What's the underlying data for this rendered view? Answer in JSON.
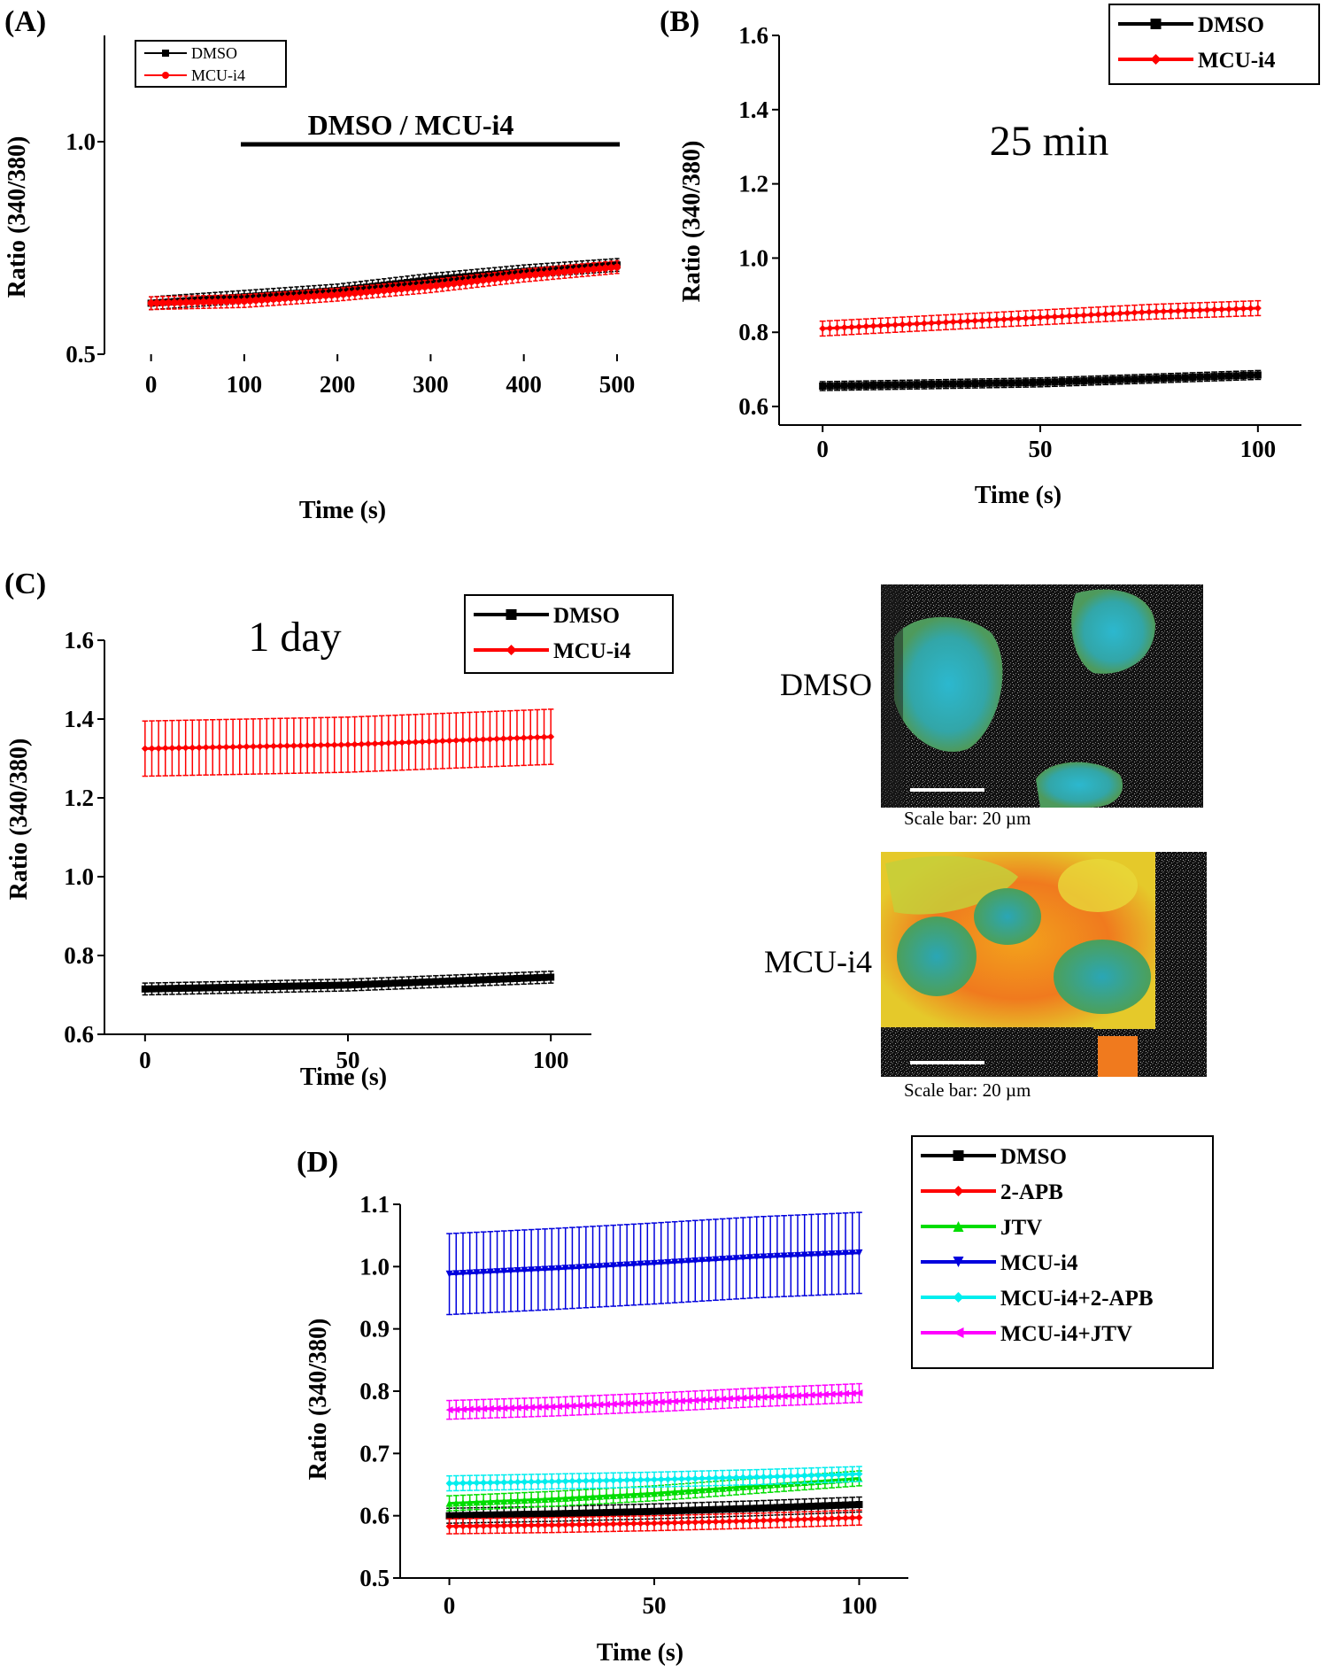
{
  "figure": {
    "micrographs": [
      {
        "label": "DMSO",
        "scale_text": "Scale bar: 20 µm"
      },
      {
        "label": "MCU-i4",
        "scale_text": "Scale bar: 20 µm"
      }
    ]
  },
  "chart_data": [
    {
      "panel": "(A)",
      "type": "line",
      "title": "",
      "annotation": "DMSO / MCU-i4",
      "xlabel": "Time (s)",
      "ylabel": "Ratio (340/380)",
      "xlim": [
        -50,
        520
      ],
      "ylim": [
        0.5,
        1.25
      ],
      "xticks": [
        0,
        100,
        200,
        300,
        400,
        500
      ],
      "yticks": [
        0.5,
        1.0
      ],
      "legend": "top-left",
      "series": [
        {
          "name": "DMSO",
          "color": "#000000",
          "marker": "square",
          "x": [
            0,
            100,
            200,
            300,
            400,
            500
          ],
          "y": [
            0.62,
            0.635,
            0.65,
            0.675,
            0.695,
            0.71
          ],
          "err": 0.015
        },
        {
          "name": "MCU-i4",
          "color": "#ff0000",
          "marker": "circle",
          "x": [
            0,
            100,
            200,
            300,
            400,
            500
          ],
          "y": [
            0.62,
            0.625,
            0.64,
            0.66,
            0.685,
            0.705
          ],
          "err": 0.015
        }
      ]
    },
    {
      "panel": "(B)",
      "type": "line",
      "title": "25 min",
      "xlabel": "Time (s)",
      "ylabel": "Ratio (340/380)",
      "xlim": [
        -10,
        110
      ],
      "ylim": [
        0.55,
        1.6
      ],
      "xticks": [
        0,
        50,
        100
      ],
      "yticks": [
        0.6,
        0.8,
        1.0,
        1.2,
        1.4,
        1.6
      ],
      "legend": "top-right",
      "series": [
        {
          "name": "DMSO",
          "color": "#000000",
          "marker": "square",
          "x": [
            0,
            25,
            50,
            75,
            100
          ],
          "y": [
            0.655,
            0.66,
            0.665,
            0.675,
            0.685
          ],
          "err": 0.012
        },
        {
          "name": "MCU-i4",
          "color": "#ff0000",
          "marker": "diamond",
          "x": [
            0,
            25,
            50,
            75,
            100
          ],
          "y": [
            0.81,
            0.825,
            0.84,
            0.855,
            0.865
          ],
          "err": 0.02
        }
      ]
    },
    {
      "panel": "(C)",
      "type": "line",
      "title": "1 day",
      "xlabel": "Time (s)",
      "ylabel": "Ratio (340/380)",
      "xlim": [
        -10,
        110
      ],
      "ylim": [
        0.6,
        1.6
      ],
      "xticks": [
        0,
        50,
        100
      ],
      "yticks": [
        0.6,
        0.8,
        1.0,
        1.2,
        1.4,
        1.6
      ],
      "legend": "top-right",
      "series": [
        {
          "name": "DMSO",
          "color": "#000000",
          "marker": "square",
          "x": [
            0,
            25,
            50,
            75,
            100
          ],
          "y": [
            0.715,
            0.72,
            0.725,
            0.735,
            0.745
          ],
          "err": 0.015
        },
        {
          "name": "MCU-i4",
          "color": "#ff0000",
          "marker": "diamond",
          "x": [
            0,
            25,
            50,
            75,
            100
          ],
          "y": [
            1.325,
            1.33,
            1.335,
            1.345,
            1.355
          ],
          "err": 0.07
        }
      ]
    },
    {
      "panel": "(D)",
      "type": "line",
      "title": "",
      "xlabel": "Time (s)",
      "ylabel": "Ratio (340/380)",
      "xlim": [
        -12,
        112
      ],
      "ylim": [
        0.5,
        1.1
      ],
      "xticks": [
        0,
        50,
        100
      ],
      "yticks": [
        0.5,
        0.6,
        0.7,
        0.8,
        0.9,
        1.0,
        1.1
      ],
      "legend": "top-right",
      "series": [
        {
          "name": "DMSO",
          "color": "#000000",
          "marker": "square",
          "x": [
            0,
            25,
            50,
            75,
            100
          ],
          "y": [
            0.6,
            0.603,
            0.607,
            0.612,
            0.618
          ],
          "err": 0.012
        },
        {
          "name": "2-APB",
          "color": "#ff0000",
          "marker": "diamond",
          "x": [
            0,
            25,
            50,
            75,
            100
          ],
          "y": [
            0.583,
            0.585,
            0.588,
            0.592,
            0.597
          ],
          "err": 0.012
        },
        {
          "name": "JTV",
          "color": "#00dd00",
          "marker": "triangle-up",
          "x": [
            0,
            25,
            50,
            75,
            100
          ],
          "y": [
            0.62,
            0.627,
            0.636,
            0.648,
            0.66
          ],
          "err": 0.012
        },
        {
          "name": "MCU-i4",
          "color": "#0000dd",
          "marker": "triangle-down",
          "x": [
            0,
            25,
            50,
            75,
            100
          ],
          "y": [
            0.988,
            0.996,
            1.005,
            1.015,
            1.022
          ],
          "err": 0.065
        },
        {
          "name": "MCU-i4+2-APB",
          "color": "#00eeee",
          "marker": "diamond",
          "x": [
            0,
            25,
            50,
            75,
            100
          ],
          "y": [
            0.652,
            0.655,
            0.658,
            0.662,
            0.667
          ],
          "err": 0.012
        },
        {
          "name": "MCU-i4+JTV",
          "color": "#ff00ff",
          "marker": "triangle-left",
          "x": [
            0,
            25,
            50,
            75,
            100
          ],
          "y": [
            0.77,
            0.775,
            0.782,
            0.79,
            0.797
          ],
          "err": 0.015
        }
      ]
    }
  ]
}
